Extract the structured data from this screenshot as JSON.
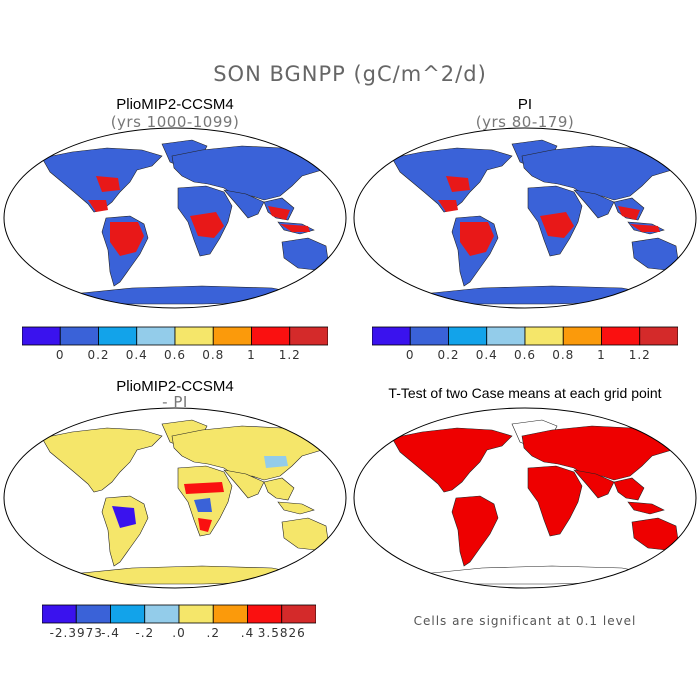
{
  "title": "SON BGNPP (gC/m^2/d)",
  "panels": [
    {
      "id": "plio",
      "title": "PlioMIP2-CCSM4",
      "subtitle": "(yrs 1000-1099)",
      "land_color": "#3a62d8"
    },
    {
      "id": "pi",
      "title": "PI",
      "subtitle": "(yrs 80-179)",
      "land_color": "#3a62d8"
    },
    {
      "id": "diff",
      "title": "PlioMIP2-CCSM4",
      "subtitle": "- PI",
      "land_color": "#f5e66a"
    },
    {
      "id": "ttest",
      "title": "T-Test of two Case means at each grid point",
      "subtitle": "",
      "land_color": "#ee0000"
    }
  ],
  "colorbar_top": {
    "colors": [
      "#3a12ee",
      "#3a62d8",
      "#12a3ea",
      "#93ccea",
      "#f5e66a",
      "#fb9a0b",
      "#fa1010",
      "#d42a2a"
    ],
    "labels": [
      "0",
      "0.2",
      "0.4",
      "0.6",
      "0.8",
      "1",
      "1.2"
    ]
  },
  "colorbar_diff": {
    "colors": [
      "#3a12ee",
      "#3a62d8",
      "#12a3ea",
      "#93ccea",
      "#f5e66a",
      "#fb9a0b",
      "#fa1010",
      "#d42a2a"
    ],
    "labels": [
      "-2.3973",
      "-.4",
      "-.2",
      ".0",
      ".2",
      ".4",
      "3.5826"
    ]
  },
  "ttest_note": "Cells are significant at 0.1 level"
}
